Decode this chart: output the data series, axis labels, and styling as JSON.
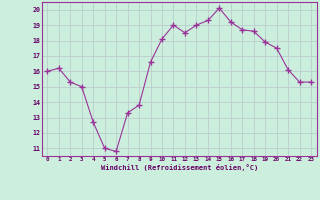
{
  "x": [
    0,
    1,
    2,
    3,
    4,
    5,
    6,
    7,
    8,
    9,
    10,
    11,
    12,
    13,
    14,
    15,
    16,
    17,
    18,
    19,
    20,
    21,
    22,
    23
  ],
  "y": [
    16.0,
    16.2,
    15.3,
    15.0,
    12.7,
    11.0,
    10.8,
    13.3,
    13.8,
    16.6,
    18.1,
    19.0,
    18.5,
    19.0,
    19.3,
    20.1,
    19.2,
    18.7,
    18.6,
    17.9,
    17.5,
    16.1,
    15.3,
    15.3
  ],
  "xlabel": "Windchill (Refroidissement éolien,°C)",
  "xlim": [
    -0.5,
    23.5
  ],
  "ylim": [
    10.5,
    20.5
  ],
  "yticks": [
    11,
    12,
    13,
    14,
    15,
    16,
    17,
    18,
    19,
    20
  ],
  "xticks": [
    0,
    1,
    2,
    3,
    4,
    5,
    6,
    7,
    8,
    9,
    10,
    11,
    12,
    13,
    14,
    15,
    16,
    17,
    18,
    19,
    20,
    21,
    22,
    23
  ],
  "xtick_labels": [
    "0",
    "1",
    "2",
    "3",
    "4",
    "5",
    "6",
    "7",
    "8",
    "9",
    "10",
    "11",
    "12",
    "13",
    "14",
    "15",
    "16",
    "17",
    "18",
    "19",
    "20",
    "21",
    "22",
    "23"
  ],
  "line_color": "#993399",
  "marker": "+",
  "bg_color": "#cceedd",
  "grid_color": "#bbcccc",
  "axis_color": "#993399",
  "label_color": "#660066",
  "tick_color": "#660066"
}
